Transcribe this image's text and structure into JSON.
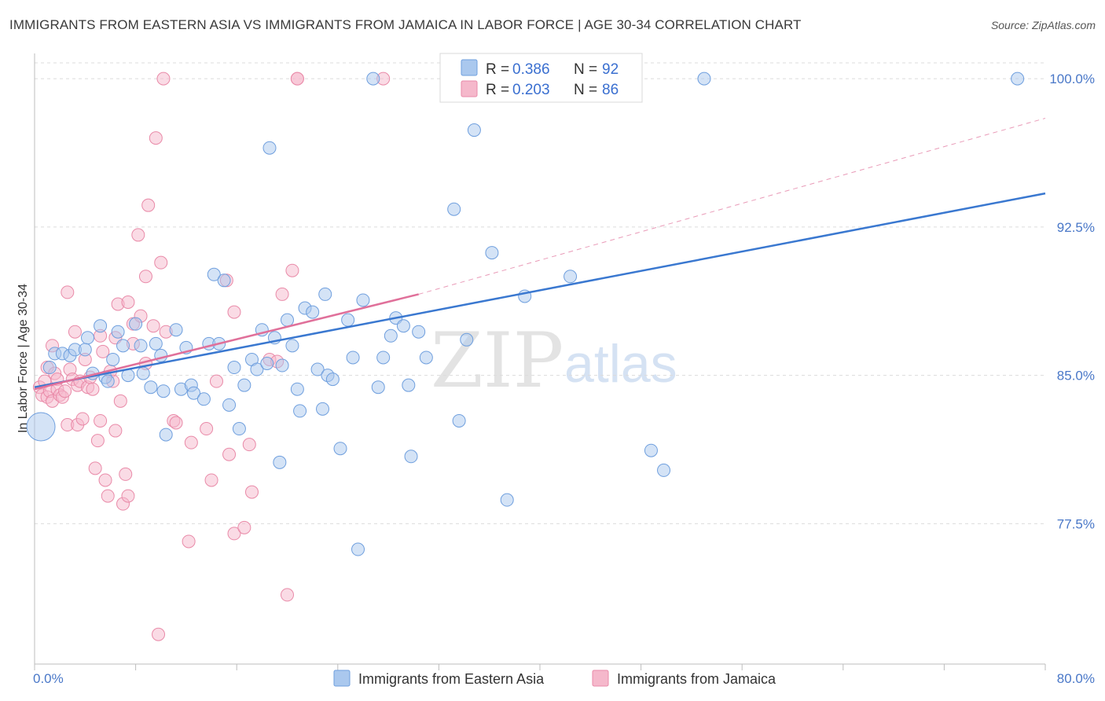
{
  "title": "IMMIGRANTS FROM EASTERN ASIA VS IMMIGRANTS FROM JAMAICA IN LABOR FORCE | AGE 30-34 CORRELATION CHART",
  "source": "Source: ZipAtlas.com",
  "watermark": {
    "zip": "ZIP",
    "atlas": "atlas"
  },
  "legend": {
    "r_label": "R =",
    "n_label": "N =",
    "rows": [
      {
        "r": "0.386",
        "n": "92"
      },
      {
        "r": "0.203",
        "n": "86"
      }
    ]
  },
  "colors": {
    "blue_fill": "#aac8ee",
    "blue_stroke": "#6f9fde",
    "blue_line": "#3a78d0",
    "pink_fill": "#f5b8cb",
    "pink_stroke": "#e98aa8",
    "pink_line": "#e0709a",
    "tick_text": "#4a78c8",
    "grid": "#dcdcdc"
  },
  "chart_data": {
    "type": "scatter",
    "title": "IMMIGRANTS FROM EASTERN ASIA VS IMMIGRANTS FROM JAMAICA IN LABOR FORCE | AGE 30-34 CORRELATION CHART",
    "xlabel": "",
    "ylabel": "In Labor Force | Age 30-34",
    "xlim": [
      0,
      80
    ],
    "ylim": [
      70.4,
      100.8
    ],
    "x_tick_labels": [
      "0.0%",
      "80.0%"
    ],
    "y_ticks": [
      77.5,
      85.0,
      92.5,
      100.0
    ],
    "y_tick_labels": [
      "77.5%",
      "85.0%",
      "92.5%",
      "100.0%"
    ],
    "grid": true,
    "legend_position": "top-center",
    "series": [
      {
        "name": "Immigrants from Eastern Asia",
        "r": 0.386,
        "n": 92,
        "trend": {
          "x": [
            0,
            80
          ],
          "y": [
            84.4,
            94.2
          ]
        },
        "points": [
          [
            0.5,
            82.4
          ],
          [
            1.2,
            85.4
          ],
          [
            1.6,
            86.1
          ],
          [
            2.2,
            86.1
          ],
          [
            2.8,
            86.0
          ],
          [
            3.2,
            86.3
          ],
          [
            4.0,
            86.3
          ],
          [
            4.2,
            86.9
          ],
          [
            4.6,
            85.1
          ],
          [
            5.2,
            87.5
          ],
          [
            5.6,
            84.9
          ],
          [
            5.8,
            84.7
          ],
          [
            6.2,
            85.8
          ],
          [
            6.6,
            87.2
          ],
          [
            7.0,
            86.5
          ],
          [
            7.4,
            85.0
          ],
          [
            8.0,
            87.6
          ],
          [
            8.4,
            86.5
          ],
          [
            8.6,
            85.1
          ],
          [
            9.2,
            84.4
          ],
          [
            9.6,
            86.6
          ],
          [
            10.0,
            86.0
          ],
          [
            10.2,
            84.2
          ],
          [
            10.4,
            82.0
          ],
          [
            11.2,
            87.3
          ],
          [
            11.6,
            84.3
          ],
          [
            12.0,
            86.4
          ],
          [
            12.4,
            84.5
          ],
          [
            12.6,
            84.1
          ],
          [
            13.4,
            83.8
          ],
          [
            13.8,
            86.6
          ],
          [
            14.2,
            90.1
          ],
          [
            14.6,
            86.6
          ],
          [
            15.0,
            89.8
          ],
          [
            15.4,
            83.5
          ],
          [
            15.8,
            85.4
          ],
          [
            16.2,
            82.3
          ],
          [
            16.6,
            84.5
          ],
          [
            17.2,
            85.8
          ],
          [
            17.6,
            85.3
          ],
          [
            18.0,
            87.3
          ],
          [
            18.4,
            85.6
          ],
          [
            18.6,
            96.5
          ],
          [
            19.0,
            86.9
          ],
          [
            19.4,
            80.6
          ],
          [
            19.6,
            85.5
          ],
          [
            20.0,
            87.8
          ],
          [
            20.4,
            86.5
          ],
          [
            20.8,
            84.3
          ],
          [
            21.0,
            83.2
          ],
          [
            21.4,
            88.4
          ],
          [
            22.0,
            88.2
          ],
          [
            22.4,
            85.3
          ],
          [
            22.8,
            83.3
          ],
          [
            23.0,
            89.1
          ],
          [
            23.2,
            85.0
          ],
          [
            23.6,
            84.8
          ],
          [
            24.2,
            81.3
          ],
          [
            24.8,
            87.8
          ],
          [
            25.2,
            85.9
          ],
          [
            25.6,
            76.2
          ],
          [
            26.0,
            88.8
          ],
          [
            26.8,
            100.0
          ],
          [
            27.2,
            84.4
          ],
          [
            27.6,
            85.9
          ],
          [
            28.2,
            87.0
          ],
          [
            28.6,
            87.9
          ],
          [
            29.2,
            87.5
          ],
          [
            29.6,
            84.5
          ],
          [
            29.8,
            80.9
          ],
          [
            30.4,
            87.2
          ],
          [
            31.0,
            85.9
          ],
          [
            33.2,
            93.4
          ],
          [
            33.6,
            82.7
          ],
          [
            34.2,
            86.8
          ],
          [
            34.8,
            97.4
          ],
          [
            36.2,
            91.2
          ],
          [
            37.4,
            78.7
          ],
          [
            38.8,
            89.0
          ],
          [
            42.4,
            90.0
          ],
          [
            48.8,
            81.2
          ],
          [
            49.8,
            80.2
          ],
          [
            53.0,
            100.0
          ],
          [
            77.8,
            100.0
          ]
        ]
      },
      {
        "name": "Immigrants from Jamaica",
        "r": 0.203,
        "n": 86,
        "trend": {
          "x": [
            0,
            30.4
          ],
          "y": [
            84.3,
            89.1
          ]
        },
        "trend_extrapolated": {
          "x": [
            30.4,
            80
          ],
          "y": [
            89.1,
            98.0
          ]
        },
        "points": [
          [
            0.4,
            84.4
          ],
          [
            0.6,
            84.0
          ],
          [
            0.8,
            84.7
          ],
          [
            1.0,
            83.9
          ],
          [
            1.0,
            85.4
          ],
          [
            1.2,
            84.2
          ],
          [
            1.4,
            83.7
          ],
          [
            1.4,
            86.5
          ],
          [
            1.6,
            85.1
          ],
          [
            1.8,
            84.8
          ],
          [
            1.8,
            84.3
          ],
          [
            2.0,
            84.0
          ],
          [
            2.2,
            83.9
          ],
          [
            2.4,
            84.2
          ],
          [
            2.6,
            89.2
          ],
          [
            2.6,
            82.5
          ],
          [
            2.8,
            85.3
          ],
          [
            3.0,
            84.8
          ],
          [
            3.2,
            87.2
          ],
          [
            3.4,
            84.5
          ],
          [
            3.4,
            82.5
          ],
          [
            3.6,
            84.7
          ],
          [
            3.8,
            82.8
          ],
          [
            4.0,
            85.8
          ],
          [
            4.2,
            84.4
          ],
          [
            4.4,
            84.9
          ],
          [
            4.6,
            84.3
          ],
          [
            4.8,
            80.3
          ],
          [
            5.0,
            81.7
          ],
          [
            5.2,
            87.0
          ],
          [
            5.2,
            82.7
          ],
          [
            5.4,
            86.2
          ],
          [
            5.6,
            79.7
          ],
          [
            5.8,
            78.9
          ],
          [
            6.0,
            85.2
          ],
          [
            6.2,
            84.7
          ],
          [
            6.4,
            82.2
          ],
          [
            6.4,
            86.9
          ],
          [
            6.6,
            88.6
          ],
          [
            6.8,
            83.7
          ],
          [
            7.0,
            78.5
          ],
          [
            7.2,
            80.0
          ],
          [
            7.4,
            88.7
          ],
          [
            7.4,
            78.9
          ],
          [
            7.8,
            87.6
          ],
          [
            7.8,
            86.6
          ],
          [
            8.2,
            92.1
          ],
          [
            8.4,
            88.0
          ],
          [
            8.8,
            85.6
          ],
          [
            8.8,
            90.0
          ],
          [
            9.0,
            93.6
          ],
          [
            9.4,
            87.5
          ],
          [
            9.6,
            97.0
          ],
          [
            9.8,
            71.9
          ],
          [
            10.0,
            90.7
          ],
          [
            10.2,
            100.0
          ],
          [
            10.4,
            87.2
          ],
          [
            11.0,
            82.7
          ],
          [
            11.2,
            82.6
          ],
          [
            12.2,
            76.6
          ],
          [
            12.4,
            81.6
          ],
          [
            13.6,
            82.3
          ],
          [
            14.0,
            79.7
          ],
          [
            14.4,
            84.7
          ],
          [
            15.2,
            89.8
          ],
          [
            15.4,
            81.0
          ],
          [
            15.8,
            77.0
          ],
          [
            15.8,
            88.2
          ],
          [
            16.6,
            77.3
          ],
          [
            17.0,
            81.5
          ],
          [
            17.2,
            79.1
          ],
          [
            18.6,
            85.8
          ],
          [
            19.2,
            85.7
          ],
          [
            19.6,
            89.1
          ],
          [
            20.0,
            73.9
          ],
          [
            20.4,
            90.3
          ],
          [
            20.8,
            100.0
          ],
          [
            20.8,
            100.0
          ],
          [
            27.6,
            100.0
          ]
        ]
      }
    ]
  },
  "bottom_legend": [
    {
      "label": "Immigrants from Eastern Asia"
    },
    {
      "label": "Immigrants from Jamaica"
    }
  ]
}
